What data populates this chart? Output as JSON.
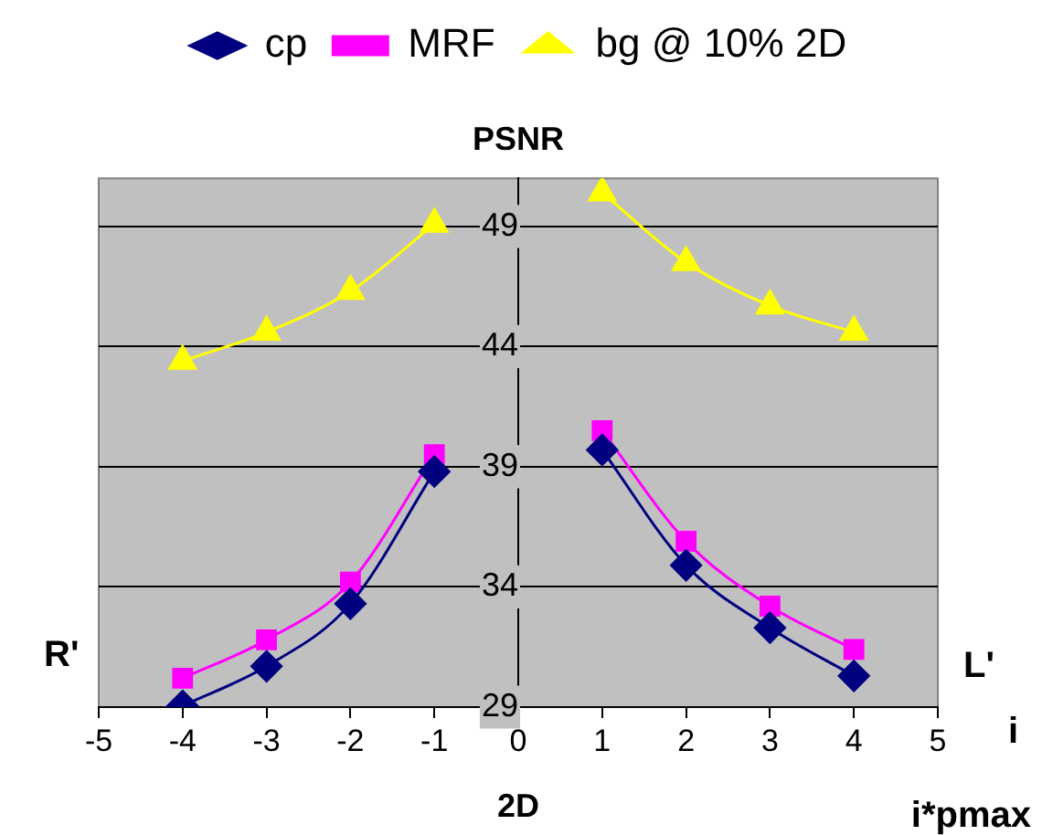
{
  "chart_data": {
    "type": "line",
    "title": "PSNR",
    "xlabel": "2D",
    "x": [
      -4,
      -3,
      -2,
      -1,
      0,
      1,
      2,
      3,
      4
    ],
    "series": [
      {
        "name": "cp",
        "color": "#000080",
        "marker": "diamond",
        "values": [
          29.05,
          30.7,
          33.3,
          38.8,
          null,
          39.7,
          34.9,
          32.3,
          30.3
        ]
      },
      {
        "name": "MRF",
        "color": "#ff00ff",
        "marker": "square",
        "values": [
          30.2,
          31.8,
          34.2,
          39.5,
          null,
          40.5,
          35.9,
          33.2,
          31.4
        ]
      },
      {
        "name": "bg @ 10% 2D",
        "color": "#ffff00",
        "marker": "triangle",
        "values": [
          43.4,
          44.6,
          46.3,
          49.1,
          null,
          50.4,
          47.5,
          45.7,
          44.6
        ]
      }
    ],
    "xlim": [
      -5,
      5
    ],
    "xticks": [
      -5,
      -4,
      -3,
      -2,
      -1,
      0,
      1,
      2,
      3,
      4,
      5
    ],
    "ylim": [
      29,
      51
    ],
    "yticks": [
      29,
      34,
      39,
      44,
      49
    ],
    "grid": "y",
    "legend": "top",
    "annotations": [
      "R'",
      "L'",
      "i",
      "i*pmax"
    ]
  }
}
